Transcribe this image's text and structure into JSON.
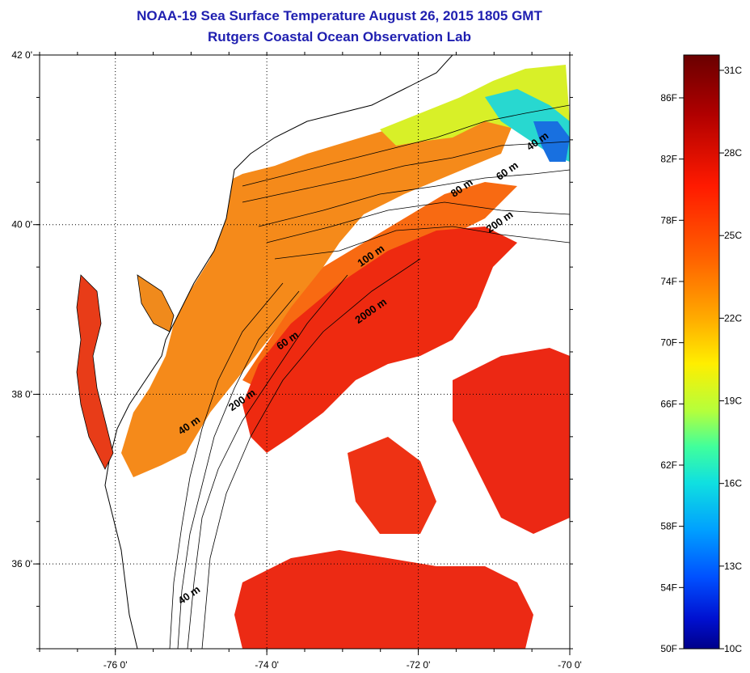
{
  "header": {
    "title": "NOAA-19 Sea Surface Temperature August 26, 2015 1805 GMT",
    "subtitle": "Rutgers Coastal Ocean Observation Lab"
  },
  "map": {
    "longitude_ticks": [
      {
        "value": -76,
        "label": "-76 0'"
      },
      {
        "value": -74,
        "label": "-74 0'"
      },
      {
        "value": -72,
        "label": "-72 0'"
      },
      {
        "value": -70,
        "label": "-70 0'"
      }
    ],
    "latitude_ticks": [
      {
        "value": 42,
        "label": "42 0'"
      },
      {
        "value": 40,
        "label": "40 0'"
      },
      {
        "value": 38,
        "label": "38 0'"
      },
      {
        "value": 36,
        "label": "36 0'"
      }
    ],
    "lon_range": [
      -77.0,
      -70.0
    ],
    "lat_range": [
      35.0,
      42.0
    ],
    "isobath_labels": [
      {
        "text": "40 m",
        "lon": -70.4,
        "lat": 40.95
      },
      {
        "text": "60 m",
        "lon": -70.8,
        "lat": 40.6
      },
      {
        "text": "80 m",
        "lon": -71.4,
        "lat": 40.4
      },
      {
        "text": "200 m",
        "lon": -70.9,
        "lat": 40.0
      },
      {
        "text": "100 m",
        "lon": -72.6,
        "lat": 39.6
      },
      {
        "text": "2000 m",
        "lon": -72.6,
        "lat": 38.95
      },
      {
        "text": "60 m",
        "lon": -73.7,
        "lat": 38.6
      },
      {
        "text": "200 m",
        "lon": -74.3,
        "lat": 37.9
      },
      {
        "text": "40 m",
        "lon": -75.0,
        "lat": 37.6
      },
      {
        "text": "40 m",
        "lon": -75.0,
        "lat": 35.6
      }
    ]
  },
  "colorbar": {
    "fahrenheit_labels": [
      "86F",
      "82F",
      "78F",
      "74F",
      "70F",
      "66F",
      "62F",
      "58F",
      "54F",
      "50F"
    ],
    "celsius_labels": [
      "31C",
      "28C",
      "25C",
      "22C",
      "19C",
      "16C",
      "13C",
      "10C"
    ],
    "colors": [
      "#7a0000",
      "#c40000",
      "#ff2000",
      "#ff6a00",
      "#ffaa00",
      "#ffe600",
      "#c8ff30",
      "#60ff90",
      "#10e0e0",
      "#00a0ff",
      "#0050ff",
      "#0010d0",
      "#00008a"
    ]
  }
}
